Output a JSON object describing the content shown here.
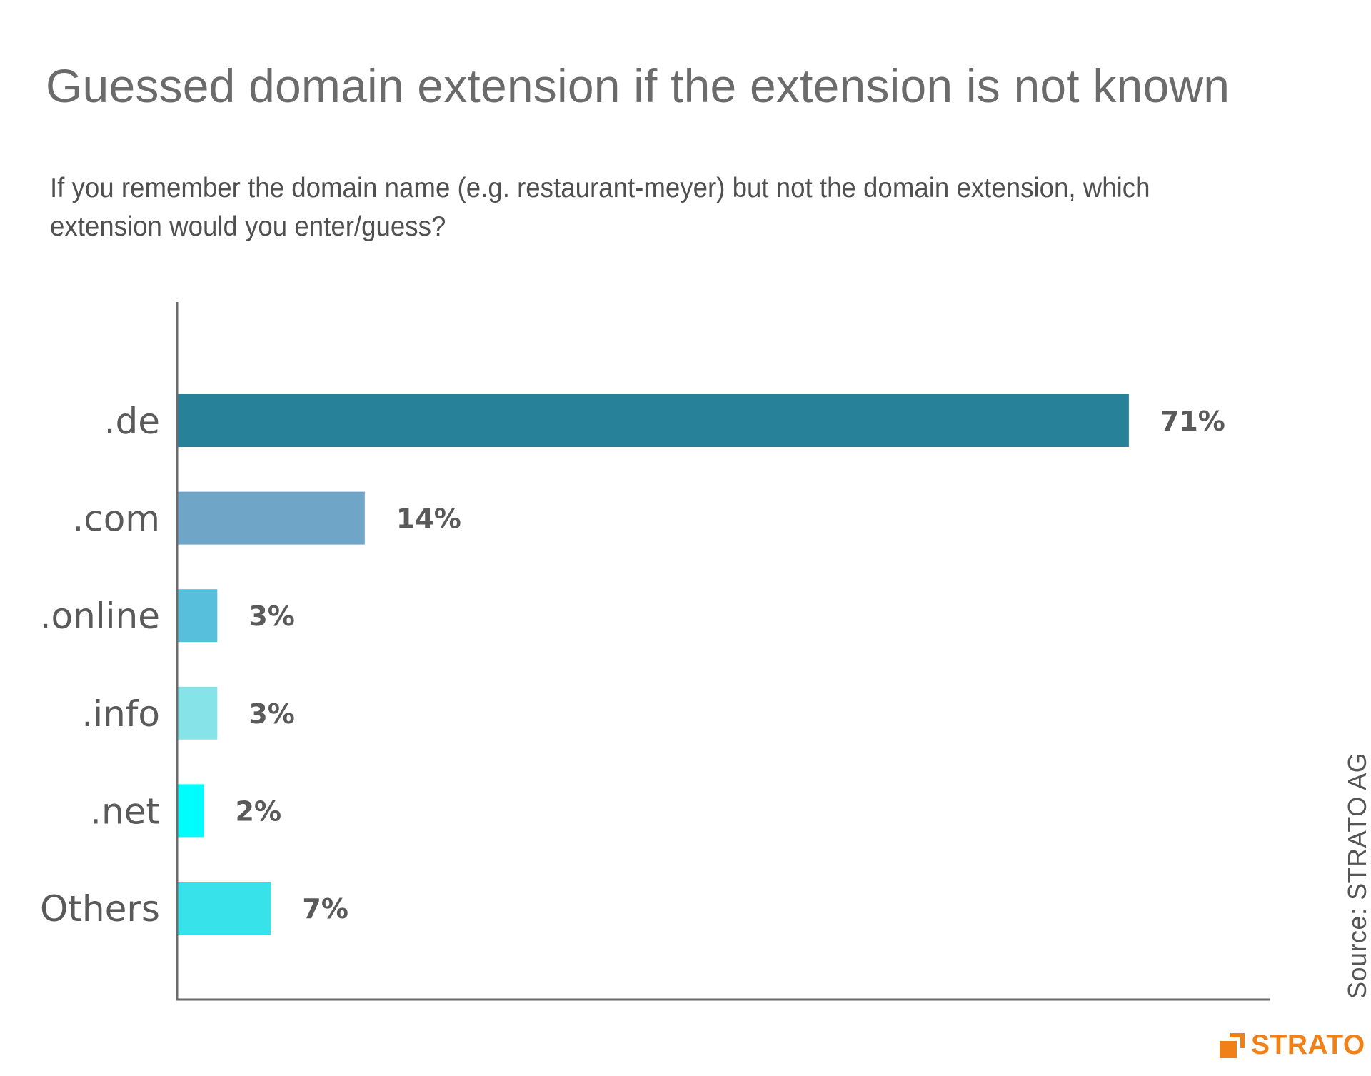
{
  "title": "Guessed domain extension if the extension is not known",
  "subtitle": "If you remember the domain name (e.g. restaurant-meyer) but not the domain extension, which extension would you enter/guess?",
  "source": "Source: STRATO  AG",
  "logo": {
    "text": "STRATO",
    "color": "#f08119"
  },
  "chart_data": {
    "type": "bar",
    "orientation": "horizontal",
    "title": "Guessed domain extension if the extension is not known",
    "categories": [
      ".de",
      ".com",
      ".online",
      ".info",
      ".net",
      "Others"
    ],
    "values": [
      71,
      14,
      3,
      3,
      2,
      7
    ],
    "value_labels": [
      "71%",
      "14%",
      "3%",
      "3%",
      "2%",
      "7%"
    ],
    "unit": "%",
    "colors": [
      "#268199",
      "#6fa5c6",
      "#57bfdb",
      "#86e4e9",
      "#00fdfd",
      "#37e2ea"
    ],
    "xlim": [
      0,
      81.5
    ],
    "grid": false,
    "legend": "none",
    "axis_color": "#6b6b6b",
    "label_color": "#5a5a5a"
  }
}
